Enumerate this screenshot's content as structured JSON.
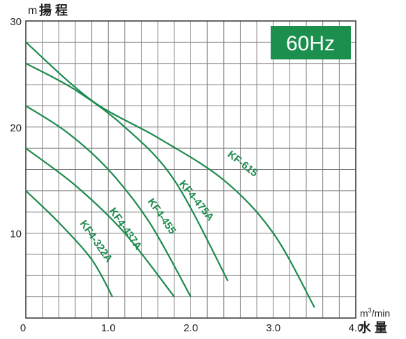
{
  "chart_data": {
    "type": "line",
    "badge_text": "60Hz",
    "ylabel_unit": "m",
    "ylabel_text": "揚 程",
    "xlabel_unit_base": "m",
    "xlabel_unit_sup": "3",
    "xlabel_unit_tail": "/min",
    "xlabel_text": "水 量",
    "xlim": [
      0,
      4.0
    ],
    "ylim": [
      2,
      30
    ],
    "x_ticks": [
      {
        "value": 0,
        "label": "0"
      },
      {
        "value": 1.0,
        "label": "1.0"
      },
      {
        "value": 2.0,
        "label": "2.0"
      },
      {
        "value": 3.0,
        "label": "3.0"
      },
      {
        "value": 4.0,
        "label": "4.0"
      }
    ],
    "y_ticks": [
      {
        "value": 10,
        "label": "10"
      },
      {
        "value": 20,
        "label": "20"
      },
      {
        "value": 30,
        "label": "30"
      }
    ],
    "grid": true,
    "colors": {
      "curve": "#1d8a4e",
      "badge": "#1b8f4d",
      "badge_text": "#ffffff",
      "grid": "#7f7f7f",
      "axis": "#333333"
    },
    "series": [
      {
        "name": "KF4-322A",
        "x": [
          0,
          0.4,
          0.8,
          1.05
        ],
        "y": [
          14,
          11,
          7.5,
          4
        ]
      },
      {
        "name": "KF4-437A",
        "x": [
          0,
          0.6,
          1.2,
          1.8
        ],
        "y": [
          18,
          14.5,
          10,
          4
        ]
      },
      {
        "name": "KF4-455",
        "x": [
          0,
          0.5,
          1.0,
          1.5,
          2.0
        ],
        "y": [
          22,
          19.5,
          16,
          11,
          4
        ]
      },
      {
        "name": "KF4-475A",
        "x": [
          0,
          0.6,
          1.2,
          1.8,
          2.45
        ],
        "y": [
          26,
          23.5,
          20,
          15,
          5.5
        ]
      },
      {
        "name": "KF-615",
        "x": [
          0,
          0.8,
          1.6,
          2.4,
          3.0,
          3.5
        ],
        "y": [
          28,
          22.5,
          19,
          15,
          10,
          3
        ]
      }
    ]
  }
}
